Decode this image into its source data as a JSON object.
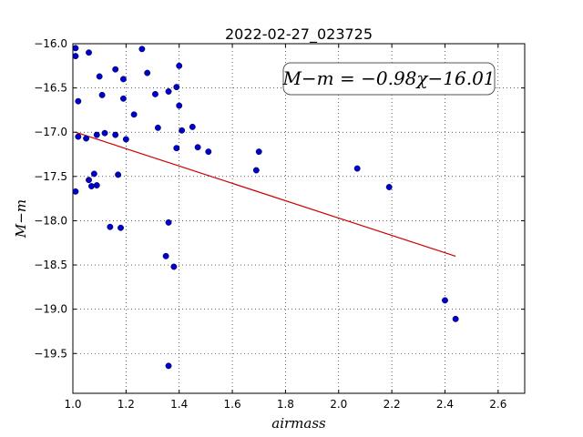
{
  "chart_data": {
    "type": "scatter",
    "title": "2022-02-27_023725",
    "xlabel": "airmass",
    "ylabel": "M−m",
    "xlim": [
      1.0,
      2.7
    ],
    "ylim": [
      -19.95,
      -16.0
    ],
    "y_inverted": true,
    "xticks": [
      1.0,
      1.2,
      1.4,
      1.6,
      1.8,
      2.0,
      2.2,
      2.4,
      2.6
    ],
    "xtick_labels": [
      "1.0",
      "1.2",
      "1.4",
      "1.6",
      "1.8",
      "2.0",
      "2.2",
      "2.4",
      "2.6"
    ],
    "yticks": [
      -16.0,
      -16.5,
      -17.0,
      -17.5,
      -18.0,
      -18.5,
      -19.0,
      -19.5
    ],
    "ytick_labels": [
      "−16.0",
      "−16.5",
      "−17.0",
      "−17.5",
      "−18.0",
      "−18.5",
      "−19.0",
      "−19.5"
    ],
    "grid": true,
    "annotation": "M−m = −0.98χ−16.01",
    "points": {
      "color": "#0000cc",
      "x": [
        1.01,
        1.01,
        1.01,
        1.02,
        1.02,
        1.05,
        1.06,
        1.06,
        1.07,
        1.08,
        1.09,
        1.09,
        1.1,
        1.11,
        1.12,
        1.14,
        1.16,
        1.16,
        1.17,
        1.18,
        1.19,
        1.19,
        1.2,
        1.23,
        1.26,
        1.28,
        1.31,
        1.32,
        1.35,
        1.36,
        1.36,
        1.36,
        1.38,
        1.39,
        1.39,
        1.4,
        1.4,
        1.41,
        1.45,
        1.47,
        1.51,
        1.69,
        1.7,
        2.07,
        2.19,
        2.4,
        2.44
      ],
      "y": [
        -16.05,
        -16.14,
        -17.67,
        -16.65,
        -17.05,
        -17.07,
        -16.1,
        -17.54,
        -17.61,
        -17.47,
        -17.6,
        -17.03,
        -16.37,
        -16.58,
        -17.01,
        -18.07,
        -16.29,
        -17.03,
        -17.48,
        -18.08,
        -16.4,
        -16.62,
        -17.08,
        -16.8,
        -16.06,
        -16.33,
        -16.57,
        -16.95,
        -18.4,
        -16.54,
        -18.02,
        -19.64,
        -18.52,
        -16.49,
        -17.18,
        -16.25,
        -16.7,
        -16.98,
        -16.94,
        -17.17,
        -17.22,
        -17.43,
        -17.22,
        -17.41,
        -17.62,
        -18.9,
        -19.11
      ]
    },
    "fit_line": {
      "color": "#cc0000",
      "slope": -0.98,
      "intercept": -16.01,
      "x_range": [
        1.01,
        2.44
      ]
    }
  }
}
